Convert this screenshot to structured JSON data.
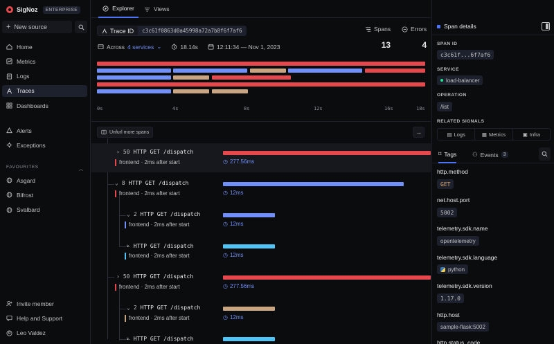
{
  "brand": {
    "name": "SigNoz",
    "badge": "ENTERPRISE"
  },
  "sidebar": {
    "new_source": "New source",
    "nav": [
      {
        "label": "Home",
        "icon": "home-icon"
      },
      {
        "label": "Metrics",
        "icon": "metrics-icon"
      },
      {
        "label": "Logs",
        "icon": "logs-icon"
      },
      {
        "label": "Traces",
        "icon": "traces-icon",
        "active": true
      },
      {
        "label": "Dashboards",
        "icon": "dashboards-icon"
      }
    ],
    "nav2": [
      {
        "label": "Alerts",
        "icon": "alerts-icon"
      },
      {
        "label": "Exceptions",
        "icon": "exceptions-icon"
      }
    ],
    "favourites_label": "FAVOURITES",
    "favourites": [
      {
        "label": "Asgard"
      },
      {
        "label": "Bifrost"
      },
      {
        "label": "Svalbard"
      }
    ],
    "bottom": [
      {
        "label": "Invite member",
        "icon": "invite-icon"
      },
      {
        "label": "Help and Support",
        "icon": "help-icon"
      },
      {
        "label": "Leo Valdez",
        "icon": "user-icon"
      }
    ]
  },
  "tabs": {
    "explorer": "Explorer",
    "views": "Views"
  },
  "trace": {
    "id_label": "Trace ID",
    "id": "c3c61f0863d0a45998a72a7b8f6f7af6",
    "across_prefix": "Across",
    "services": "4 services",
    "duration": "18.14s",
    "timestamp": "12:11:34 — Nov 1, 2023",
    "spans_label": "Spans",
    "spans_count": "13",
    "errors_label": "Errors",
    "errors_count": "4"
  },
  "timeline": {
    "ticks": [
      "0s",
      "4s",
      "8s",
      "12s",
      "16s",
      "18s"
    ]
  },
  "unfurl": "Unfurl more spans",
  "spans": [
    {
      "count": "50",
      "name": "HTTP GET /dispatch",
      "service": "frontend",
      "offset": "2ms after start",
      "duration": "277.56ms",
      "fill": 1.0,
      "color": "#e5484d"
    },
    {
      "count": "8",
      "name": "HTTP GET /dispatch",
      "service": "frontend",
      "offset": "2ms after start",
      "duration": "12ms",
      "fill": 0.87,
      "color": "#7190f9"
    },
    {
      "count": "2",
      "name": "HTTP GET /dispatch",
      "service": "frontend",
      "offset": "2ms after start",
      "duration": "12ms",
      "fill": 0.25,
      "color": "#7190f9"
    },
    {
      "count": "",
      "name": "HTTP GET /dispatch",
      "service": "frontend",
      "offset": "2ms after start",
      "duration": "12ms",
      "fill": 0.25,
      "color": "#4fc4f7"
    },
    {
      "count": "50",
      "name": "HTTP GET /dispatch",
      "service": "frontend",
      "offset": "2ms after start",
      "duration": "277.56ms",
      "fill": 1.0,
      "color": "#e5484d"
    },
    {
      "count": "2",
      "name": "HTTP GET /dispatch",
      "service": "frontend",
      "offset": "2ms after start",
      "duration": "12ms",
      "fill": 0.25,
      "color": "#c9a582"
    },
    {
      "count": "",
      "name": "HTTP GET /dispatch",
      "service": "frontend",
      "offset": "",
      "duration": "",
      "fill": 0.25,
      "color": "#4fc4f7"
    }
  ],
  "panel": {
    "title": "Span details",
    "span_id_label": "SPAN ID",
    "span_id": "c3c61f...6f7af6",
    "service_label": "SERVICE",
    "service": "load-balancer",
    "operation_label": "OPERATION",
    "operation": "/list",
    "related_label": "RELATED SIGNALS",
    "signals": [
      "Logs",
      "Metrics",
      "Infra"
    ],
    "tab_tags": "Tags",
    "tab_events": "Events",
    "events_count": "3",
    "tags": [
      {
        "key": "http.method",
        "value": "GET"
      },
      {
        "key": "net.host.port",
        "value": "5002"
      },
      {
        "key": "telemetry.sdk.name",
        "value": "opentelemetry"
      },
      {
        "key": "telemetry.sdk.language",
        "value": "python"
      },
      {
        "key": "telemetry.sdk.version",
        "value": "1.17.0"
      },
      {
        "key": "http.host",
        "value": "sample-flask:5002"
      },
      {
        "key": "http.status_code",
        "value": ""
      }
    ]
  },
  "colors": {
    "accent": "#4e74f8",
    "error": "#e5484d",
    "blue": "#7190f9",
    "tan": "#c9a582",
    "cyan": "#4fc4f7",
    "green": "#25e192"
  }
}
